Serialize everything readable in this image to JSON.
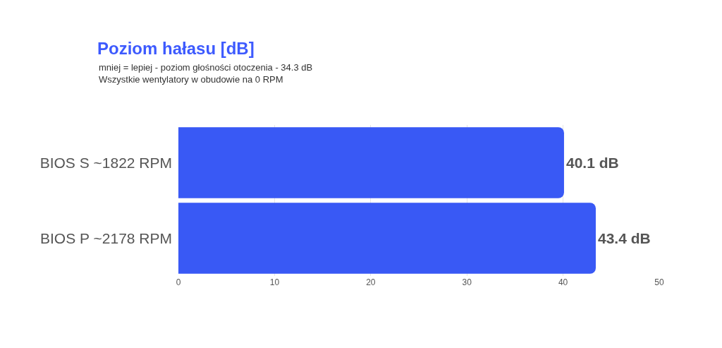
{
  "chart_data": {
    "type": "bar",
    "title": "Poziom hałasu [dB]",
    "subtitle": "mniej = lepiej - poziom głośności otoczenia - 34.3 dB\nWszystkie wentylatory w obudowie na 0 RPM",
    "orientation": "horizontal",
    "categories": [
      "BIOS S ~1822 RPM",
      "BIOS P ~2178 RPM"
    ],
    "values": [
      40.1,
      43.4
    ],
    "value_labels": [
      "40.1 dB",
      "43.4 dB"
    ],
    "color": "#3959f5",
    "xlim": [
      0,
      50
    ],
    "xticks": [
      0,
      10,
      20,
      30,
      40,
      50
    ],
    "grid": "x"
  }
}
